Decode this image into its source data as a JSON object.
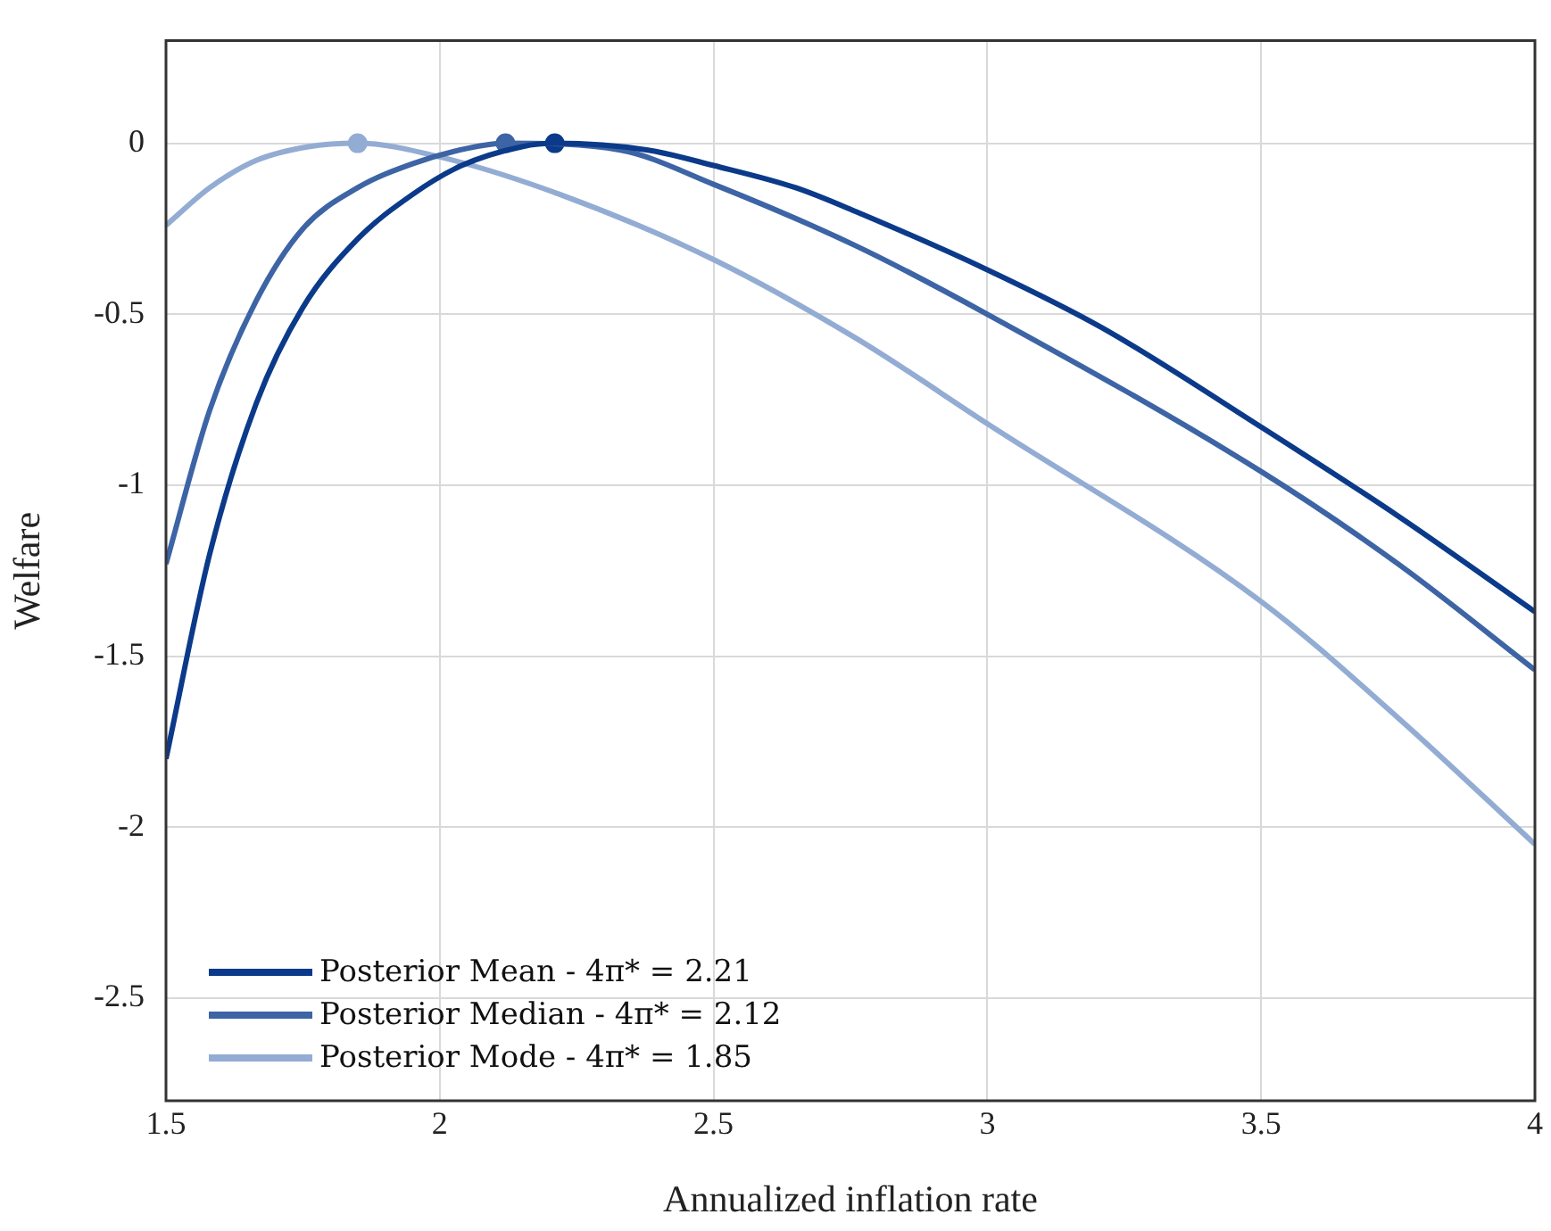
{
  "chart_data": {
    "type": "line",
    "xlabel": "Annualized inflation rate",
    "ylabel": "Welfare",
    "xlim": [
      1.5,
      4
    ],
    "xticks": [
      1.5,
      2,
      2.5,
      3,
      3.5,
      4
    ],
    "ylim": [
      -2.8,
      0.3
    ],
    "yticks": [
      -2.5,
      -2,
      -1.5,
      -1,
      -0.5,
      0
    ],
    "grid": true,
    "legend": "bottom left",
    "marker": "none",
    "line_style": "solid",
    "series": [
      {
        "name": "Posterior Mean - 4π* = 2.21",
        "color": "#0b3a8a",
        "x": [
          1.5,
          1.58,
          1.665,
          1.75,
          1.85,
          1.95,
          2.04,
          2.15,
          2.21,
          2.38,
          2.5,
          2.65,
          2.76,
          3,
          3.21,
          3.5,
          3.75,
          4
        ],
        "values": [
          -1.8,
          -1.2,
          -0.76,
          -0.48,
          -0.28,
          -0.15,
          -0.065,
          -0.01,
          0,
          -0.02,
          -0.065,
          -0.13,
          -0.2,
          -0.37,
          -0.54,
          -0.83,
          -1.09,
          -1.37
        ]
      },
      {
        "name": "Posterior Median - 4π* = 2.12",
        "color": "#3d64a5",
        "x": [
          1.5,
          1.58,
          1.665,
          1.75,
          1.85,
          1.95,
          2.05,
          2.12,
          2.33,
          2.5,
          2.76,
          3,
          3.5,
          3.75,
          4
        ],
        "values": [
          -1.23,
          -0.78,
          -0.46,
          -0.25,
          -0.13,
          -0.06,
          -0.015,
          0,
          -0.02,
          -0.12,
          -0.3,
          -0.5,
          -0.96,
          -1.23,
          -1.54
        ]
      },
      {
        "name": "Posterior Mode - 4π* = 1.85",
        "color": "#93acd3",
        "x": [
          1.5,
          1.58,
          1.665,
          1.76,
          1.85,
          2,
          2.22,
          2.5,
          2.76,
          3,
          3.5,
          3.75,
          4
        ],
        "values": [
          -0.24,
          -0.13,
          -0.05,
          -0.01,
          0,
          -0.04,
          -0.15,
          -0.34,
          -0.57,
          -0.82,
          -1.34,
          -1.68,
          -2.05
        ]
      },
      {
        "type": "scatter",
        "marker": "circle",
        "color": "#0b3a8a",
        "x": [
          2.21
        ],
        "values": [
          0
        ]
      },
      {
        "type": "scatter",
        "marker": "circle",
        "color": "#3d64a5",
        "x": [
          2.12
        ],
        "values": [
          0
        ]
      },
      {
        "type": "scatter",
        "marker": "circle",
        "color": "#93acd3",
        "x": [
          1.85
        ],
        "values": [
          0
        ]
      }
    ]
  }
}
